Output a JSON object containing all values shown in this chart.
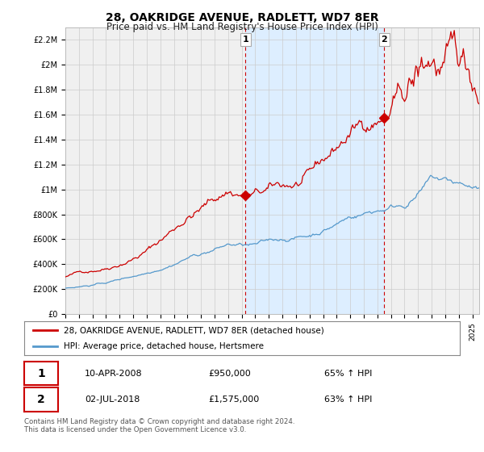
{
  "title": "28, OAKRIDGE AVENUE, RADLETT, WD7 8ER",
  "subtitle": "Price paid vs. HM Land Registry's House Price Index (HPI)",
  "footnote": "Contains HM Land Registry data © Crown copyright and database right 2024.\nThis data is licensed under the Open Government Licence v3.0.",
  "legend_line1": "28, OAKRIDGE AVENUE, RADLETT, WD7 8ER (detached house)",
  "legend_line2": "HPI: Average price, detached house, Hertsmere",
  "sale1_date": "10-APR-2008",
  "sale1_price": "£950,000",
  "sale1_hpi": "65% ↑ HPI",
  "sale1_year": 2008.28,
  "sale1_value": 950000,
  "sale2_date": "02-JUL-2018",
  "sale2_price": "£1,575,000",
  "sale2_hpi": "63% ↑ HPI",
  "sale2_year": 2018.5,
  "sale2_value": 1575000,
  "ylim": [
    0,
    2300000
  ],
  "yticks": [
    0,
    200000,
    400000,
    600000,
    800000,
    1000000,
    1200000,
    1400000,
    1600000,
    1800000,
    2000000,
    2200000
  ],
  "ytick_labels": [
    "£0",
    "£200K",
    "£400K",
    "£600K",
    "£800K",
    "£1M",
    "£1.2M",
    "£1.4M",
    "£1.6M",
    "£1.8M",
    "£2M",
    "£2.2M"
  ],
  "xlim": [
    1995,
    2025.5
  ],
  "red_color": "#cc0000",
  "blue_color": "#5599cc",
  "shade_color": "#ddeeff",
  "grid_color": "#cccccc",
  "bg_color": "#ffffff",
  "plot_bg_color": "#f0f0f0"
}
